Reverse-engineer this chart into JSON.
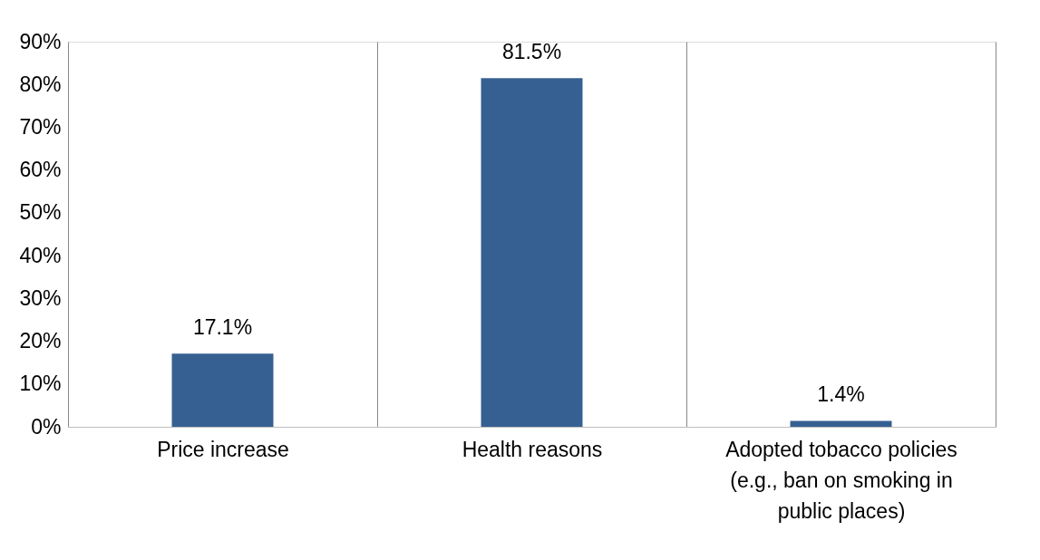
{
  "chart_data": {
    "type": "bar",
    "categories": [
      "Price increase",
      "Health reasons",
      "Adopted tobacco policies (e.g., ban on smoking in public places)"
    ],
    "values": [
      17.1,
      81.5,
      1.4
    ],
    "value_labels": [
      "17.1%",
      "81.5%",
      "1.4%"
    ],
    "color": "#376092",
    "ylim": [
      0,
      90
    ],
    "yticks": [
      {
        "value": 0,
        "label": "0%"
      },
      {
        "value": 10,
        "label": "10%"
      },
      {
        "value": 20,
        "label": "20%"
      },
      {
        "value": 30,
        "label": "30%"
      },
      {
        "value": 40,
        "label": "40%"
      },
      {
        "value": 50,
        "label": "50%"
      },
      {
        "value": 60,
        "label": "60%"
      },
      {
        "value": 70,
        "label": "70%"
      },
      {
        "value": 80,
        "label": "80%"
      },
      {
        "value": 90,
        "label": "90%"
      }
    ],
    "grid": "x"
  }
}
